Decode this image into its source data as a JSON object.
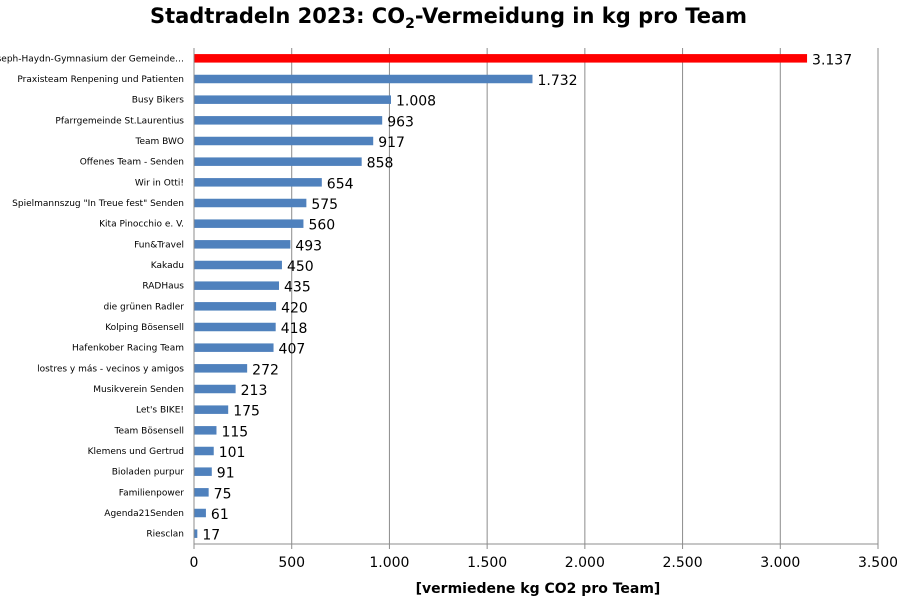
{
  "title": {
    "before": "Stadtradeln 2023: CO",
    "subscript": "2",
    "after": "-Vermeidung in kg pro Team"
  },
  "chart_data": {
    "type": "bar",
    "orientation": "horizontal",
    "title": "Stadtradeln 2023: CO2-Vermeidung in kg pro Team",
    "xlabel": "[vermiedene kg CO2 pro Team]",
    "ylabel": "",
    "xlim": [
      0,
      3500
    ],
    "x_ticks": [
      0,
      500,
      1000,
      1500,
      2000,
      2500,
      3000,
      3500
    ],
    "x_tick_labels": [
      "0",
      "500",
      "1.000",
      "1.500",
      "2.000",
      "2.500",
      "3.000",
      "3.500"
    ],
    "grid": "vertical",
    "colors": {
      "bar": "#4f81bd",
      "highlight": "#ff0000",
      "grid": "#8c8c8c"
    },
    "highlight_index": 0,
    "categories": [
      "Joseph-Haydn-Gymnasium der Gemeinde…",
      "Praxisteam Renpening und Patienten",
      "Busy Bikers",
      "Pfarrgemeinde St.Laurentius",
      "Team BWO",
      "Offenes Team - Senden",
      "Wir in Otti!",
      "Spielmannszug \"In Treue fest\" Senden",
      "Kita Pinocchio e. V.",
      "Fun&Travel",
      "Kakadu",
      "RADHaus",
      "die grünen Radler",
      "Kolping Bösensell",
      "Hafenkober Racing Team",
      "lostres y más - vecinos y amigos",
      "Musikverein Senden",
      "Let's BIKE!",
      "Team Bösensell",
      "Klemens und Gertrud",
      "Bioladen purpur",
      "Familienpower",
      "Agenda21Senden",
      "Riesclan"
    ],
    "values": [
      3137,
      1732,
      1008,
      963,
      917,
      858,
      654,
      575,
      560,
      493,
      450,
      435,
      420,
      418,
      407,
      272,
      213,
      175,
      115,
      101,
      91,
      75,
      61,
      17
    ],
    "value_labels": [
      "3.137",
      "1.732",
      "1.008",
      "963",
      "917",
      "858",
      "654",
      "575",
      "560",
      "493",
      "450",
      "435",
      "420",
      "418",
      "407",
      "272",
      "213",
      "175",
      "115",
      "101",
      "91",
      "75",
      "61",
      "17"
    ]
  }
}
